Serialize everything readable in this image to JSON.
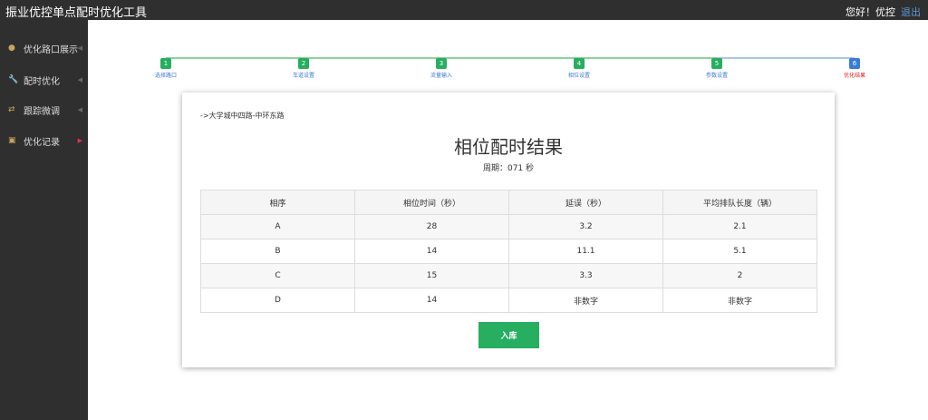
{
  "header": {
    "title": "振业优控单点配时优化工具",
    "greeting": "您好！优控",
    "logout": "退出"
  },
  "sidebar": {
    "items": [
      {
        "label": "优化路口展示",
        "icon": "map-pin-icon"
      },
      {
        "label": "配时优化",
        "icon": "wrench-icon"
      },
      {
        "label": "跟踪微调",
        "icon": "retweet-icon"
      },
      {
        "label": "优化记录",
        "icon": "copy-icon",
        "active": true
      }
    ]
  },
  "steps": [
    {
      "num": "1",
      "label": "选择路口"
    },
    {
      "num": "2",
      "label": "车道设置"
    },
    {
      "num": "3",
      "label": "流量输入"
    },
    {
      "num": "4",
      "label": "相位设置"
    },
    {
      "num": "5",
      "label": "参数设置"
    },
    {
      "num": "6",
      "label": "优化结果",
      "current": true
    }
  ],
  "colors": {
    "done": "#27ae60",
    "current": "#3a7bd5",
    "current_label": "#e02020"
  },
  "card": {
    "breadcrumb": "->大学城中四路-中环东路",
    "title": "相位配时结果",
    "cycle": "周期：071 秒",
    "columns": [
      "相序",
      "相位时间（秒）",
      "延误（秒）",
      "平均排队长度（辆）"
    ],
    "rows": [
      [
        "A",
        "28",
        "3.2",
        "2.1"
      ],
      [
        "B",
        "14",
        "11.1",
        "5.1"
      ],
      [
        "C",
        "15",
        "3.3",
        "2"
      ],
      [
        "D",
        "14",
        "非数字",
        "非数字"
      ]
    ],
    "save_button": "入库"
  }
}
